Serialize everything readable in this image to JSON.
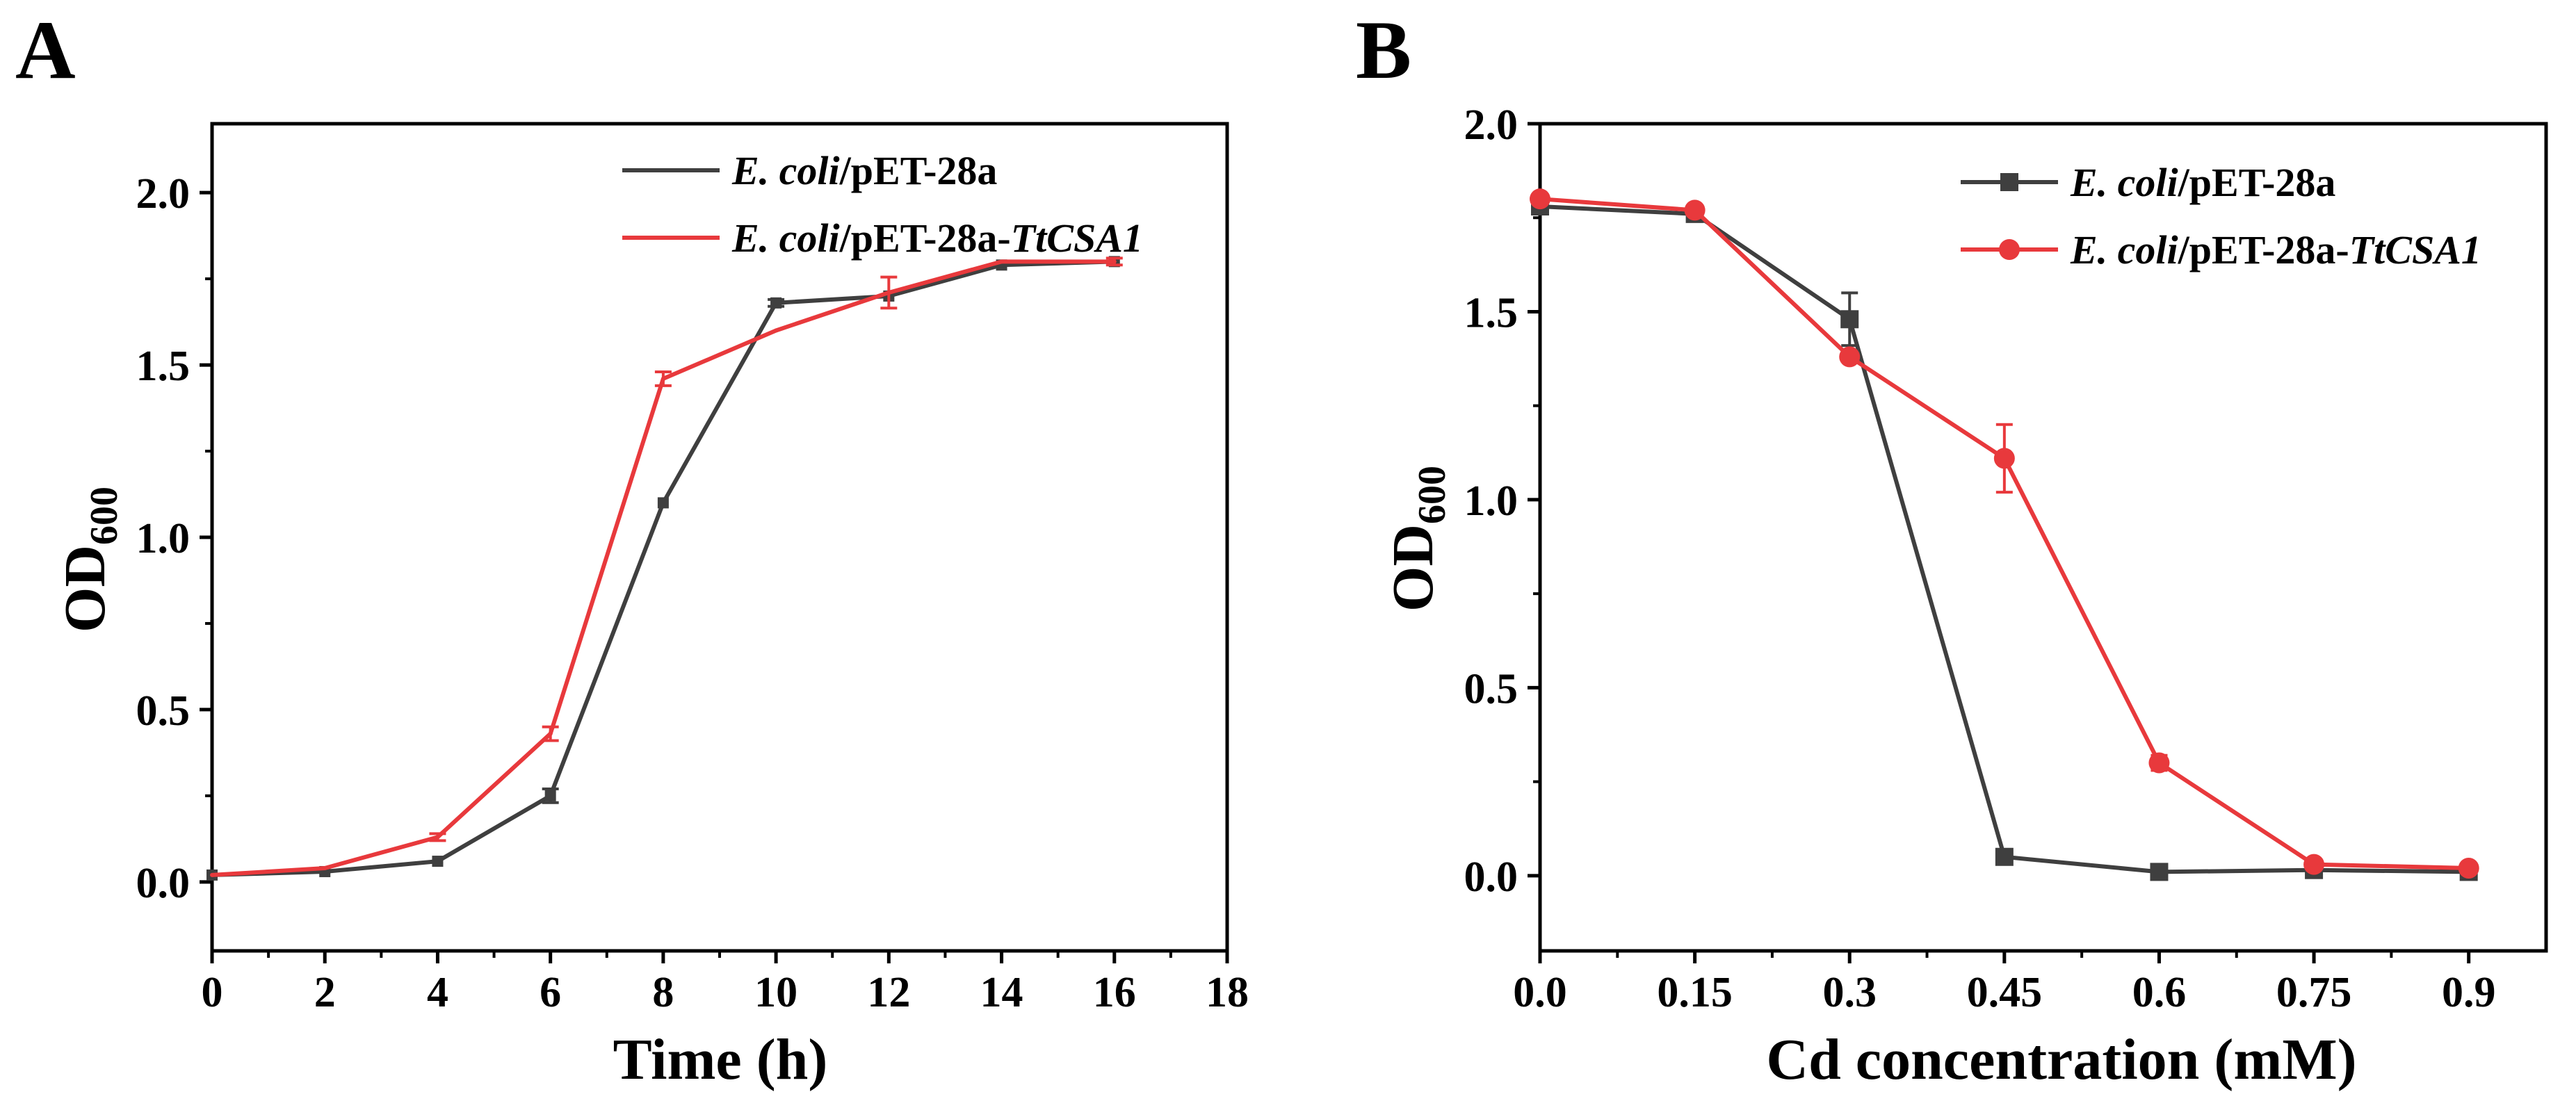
{
  "chart_data": [
    {
      "panel": "A",
      "type": "line",
      "xlabel": "Time (h)",
      "ylabel": "OD",
      "ylabel_sub": "600",
      "xlim": [
        0,
        18
      ],
      "ylim": [
        -0.2,
        2.2
      ],
      "xticks": [
        "0",
        "2",
        "4",
        "6",
        "8",
        "10",
        "12",
        "14",
        "16",
        "18"
      ],
      "yticks": [
        "0.0",
        "0.5",
        "1.0",
        "1.5",
        "2.0"
      ],
      "legend_position": "top-right",
      "x": [
        0,
        2,
        4,
        6,
        8,
        10,
        12,
        14,
        16
      ],
      "series": [
        {
          "legend_italic": "E. coli",
          "legend_plain": "/pET-28a",
          "legend_italic2": "",
          "color": "#3f3f3f",
          "marker": "square-small",
          "values": [
            0.02,
            0.03,
            0.06,
            0.25,
            1.1,
            1.68,
            1.7,
            1.79,
            1.8
          ],
          "errors": [
            0.0,
            0.0,
            0.0,
            0.02,
            0.0,
            0.01,
            0.0,
            0.0,
            0.0
          ]
        },
        {
          "legend_italic": "E. coli",
          "legend_plain": "/pET-28a-",
          "legend_italic2": "TtCSA1",
          "color": "#e8393c",
          "marker": "none",
          "values": [
            0.02,
            0.04,
            0.13,
            0.43,
            1.46,
            1.6,
            1.71,
            1.8,
            1.8
          ],
          "errors": [
            0.0,
            0.0,
            0.01,
            0.02,
            0.02,
            0.0,
            0.045,
            0.0,
            0.01
          ]
        }
      ]
    },
    {
      "panel": "B",
      "type": "line",
      "xlabel": "Cd concentration (mM)",
      "ylabel": "OD",
      "ylabel_sub": "600",
      "xlim": [
        0,
        0.975
      ],
      "ylim": [
        -0.2,
        2.0
      ],
      "xticks": [
        "0.0",
        "0.15",
        "0.3",
        "0.45",
        "0.6",
        "0.75",
        "0.9"
      ],
      "yticks": [
        "0.0",
        "0.5",
        "1.0",
        "1.5",
        "2.0"
      ],
      "legend_position": "top-right",
      "x": [
        0.0,
        0.15,
        0.3,
        0.45,
        0.6,
        0.75,
        0.9
      ],
      "series": [
        {
          "legend_italic": "E. coli",
          "legend_plain": "/pET-28a",
          "legend_italic2": "",
          "color": "#3f3f3f",
          "marker": "square",
          "values": [
            1.78,
            1.76,
            1.48,
            0.05,
            0.01,
            0.015,
            0.01
          ],
          "errors": [
            0.0,
            0.0,
            0.07,
            0.0,
            0.0,
            0.0,
            0.0
          ]
        },
        {
          "legend_italic": "E. coli",
          "legend_plain": "/pET-28a-",
          "legend_italic2": "TtCSA1",
          "color": "#e8393c",
          "marker": "circle",
          "values": [
            1.8,
            1.77,
            1.38,
            1.11,
            0.3,
            0.03,
            0.02
          ],
          "errors": [
            0.0,
            0.0,
            0.0,
            0.09,
            0.02,
            0.0,
            0.0
          ]
        }
      ]
    }
  ]
}
